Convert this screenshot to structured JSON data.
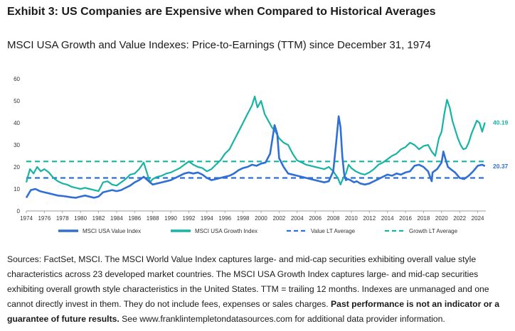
{
  "header": {
    "title": "Exhibit 3: US Companies are Expensive when Compared to Historical Averages"
  },
  "chart_data": {
    "type": "line",
    "title": "MSCI USA Growth and Value Indexes: Price-to-Earnings (TTM) since December 31, 1974",
    "xlabel": "",
    "ylabel": "",
    "xlim": [
      1974,
      2024.9
    ],
    "ylim": [
      0,
      60
    ],
    "y_ticks": [
      0,
      10,
      20,
      30,
      40,
      50,
      60
    ],
    "x_ticks": [
      1974,
      1976,
      1978,
      1980,
      1982,
      1984,
      1986,
      1988,
      1990,
      1992,
      1994,
      1996,
      1998,
      2000,
      2002,
      2004,
      2006,
      2008,
      2010,
      2012,
      2014,
      2016,
      2018,
      2020,
      2022,
      2024
    ],
    "grid": false,
    "legend_position": "bottom",
    "series": [
      {
        "name": "MSCI USA Value Index",
        "color": "#2f6fd6",
        "style": "solid",
        "end_label": "20.37",
        "x": [
          1974.0,
          1974.5,
          1975.0,
          1975.5,
          1976.0,
          1976.5,
          1977.0,
          1977.5,
          1978.0,
          1978.5,
          1979.0,
          1979.5,
          1980.0,
          1980.5,
          1981.0,
          1981.5,
          1982.0,
          1982.5,
          1983.0,
          1983.5,
          1984.0,
          1984.5,
          1985.0,
          1985.5,
          1986.0,
          1986.5,
          1987.0,
          1987.7,
          1988.0,
          1988.5,
          1989.0,
          1989.5,
          1990.0,
          1990.5,
          1991.0,
          1991.5,
          1992.0,
          1992.5,
          1993.0,
          1993.5,
          1994.0,
          1994.5,
          1995.0,
          1995.5,
          1996.0,
          1996.5,
          1997.0,
          1997.5,
          1998.0,
          1998.5,
          1999.0,
          1999.5,
          2000.0,
          2000.5,
          2001.0,
          2001.5,
          2001.8,
          2002.0,
          2002.5,
          2003.0,
          2003.5,
          2004.0,
          2004.5,
          2005.0,
          2005.5,
          2006.0,
          2006.5,
          2007.0,
          2007.5,
          2008.0,
          2008.3,
          2008.6,
          2008.8,
          2009.0,
          2009.2,
          2009.4,
          2009.6,
          2009.9,
          2010.3,
          2010.6,
          2011.0,
          2011.5,
          2012.0,
          2012.5,
          2013.0,
          2013.5,
          2014.0,
          2014.5,
          2015.0,
          2015.5,
          2016.0,
          2016.5,
          2017.0,
          2017.5,
          2018.0,
          2018.5,
          2018.9,
          2019.0,
          2019.5,
          2020.0,
          2020.2,
          2020.4,
          2020.7,
          2021.0,
          2021.5,
          2022.0,
          2022.5,
          2023.0,
          2023.5,
          2024.0,
          2024.5,
          2024.8
        ],
        "values": [
          6.0,
          9.5,
          10.0,
          9.0,
          8.5,
          8.0,
          7.5,
          7.0,
          6.8,
          6.5,
          6.2,
          6.0,
          6.5,
          7.0,
          6.5,
          6.0,
          6.5,
          8.5,
          9.0,
          9.5,
          9.0,
          9.5,
          10.5,
          11.5,
          13.0,
          14.0,
          15.5,
          13.0,
          12.0,
          12.5,
          13.0,
          13.5,
          14.0,
          15.0,
          16.0,
          17.0,
          17.5,
          17.0,
          17.5,
          16.5,
          15.0,
          14.0,
          14.5,
          15.0,
          15.5,
          16.0,
          17.0,
          18.5,
          19.5,
          20.0,
          21.0,
          20.5,
          21.5,
          22.0,
          26.0,
          39.0,
          35.0,
          24.0,
          20.0,
          17.0,
          16.5,
          16.0,
          15.5,
          15.0,
          14.5,
          14.0,
          13.5,
          13.0,
          13.5,
          18.0,
          30.0,
          43.0,
          38.0,
          25.0,
          17.0,
          14.0,
          14.5,
          14.0,
          13.0,
          13.5,
          12.5,
          12.0,
          12.5,
          13.5,
          14.5,
          15.5,
          16.5,
          16.0,
          17.0,
          16.5,
          17.5,
          18.0,
          20.5,
          21.0,
          20.0,
          18.0,
          13.5,
          17.5,
          19.0,
          22.0,
          27.0,
          24.0,
          20.0,
          19.0,
          17.5,
          15.0,
          14.5,
          16.0,
          18.0,
          20.5,
          21.0,
          20.4
        ]
      },
      {
        "name": "MSCI USA Growth Index",
        "color": "#17b3a4",
        "style": "solid",
        "end_label": "40.19",
        "x": [
          1974.0,
          1974.4,
          1974.8,
          1975.2,
          1975.6,
          1976.0,
          1976.5,
          1977.0,
          1977.5,
          1978.0,
          1978.5,
          1979.0,
          1979.5,
          1980.0,
          1980.5,
          1981.0,
          1981.5,
          1982.0,
          1982.5,
          1983.0,
          1983.5,
          1984.0,
          1984.5,
          1985.0,
          1985.5,
          1986.0,
          1986.5,
          1987.0,
          1987.7,
          1988.0,
          1988.5,
          1989.0,
          1989.5,
          1990.0,
          1990.5,
          1991.0,
          1991.5,
          1992.0,
          1992.5,
          1993.0,
          1993.5,
          1994.0,
          1994.5,
          1995.0,
          1995.5,
          1996.0,
          1996.5,
          1997.0,
          1997.5,
          1998.0,
          1998.5,
          1999.0,
          1999.3,
          1999.6,
          2000.0,
          2000.4,
          2000.8,
          2001.2,
          2001.6,
          2002.0,
          2002.5,
          2003.0,
          2003.5,
          2004.0,
          2004.5,
          2005.0,
          2005.5,
          2006.0,
          2006.5,
          2007.0,
          2007.5,
          2008.0,
          2008.5,
          2008.8,
          2009.1,
          2009.4,
          2009.7,
          2010.0,
          2010.5,
          2011.0,
          2011.5,
          2012.0,
          2012.5,
          2013.0,
          2013.5,
          2014.0,
          2014.5,
          2015.0,
          2015.5,
          2016.0,
          2016.5,
          2017.0,
          2017.5,
          2018.0,
          2018.5,
          2018.9,
          2019.3,
          2019.7,
          2020.0,
          2020.3,
          2020.6,
          2020.9,
          2021.2,
          2021.5,
          2021.8,
          2022.1,
          2022.4,
          2022.7,
          2023.0,
          2023.3,
          2023.6,
          2023.9,
          2024.2,
          2024.5,
          2024.8
        ],
        "values": [
          13.0,
          19.0,
          17.0,
          20.0,
          18.0,
          19.0,
          17.5,
          15.0,
          13.5,
          12.5,
          12.0,
          11.0,
          10.5,
          10.0,
          10.5,
          10.0,
          9.5,
          9.0,
          13.0,
          13.5,
          12.0,
          11.5,
          13.0,
          14.5,
          16.5,
          17.0,
          19.0,
          22.0,
          13.0,
          14.5,
          15.5,
          16.0,
          17.0,
          17.5,
          18.5,
          19.5,
          21.0,
          22.5,
          21.0,
          20.0,
          19.5,
          18.0,
          19.0,
          21.0,
          23.0,
          26.0,
          28.0,
          32.0,
          36.0,
          40.0,
          44.0,
          48.0,
          52.0,
          47.0,
          50.0,
          44.0,
          41.0,
          38.0,
          36.0,
          33.0,
          31.0,
          30.0,
          26.0,
          23.0,
          22.0,
          21.0,
          20.5,
          20.0,
          19.5,
          19.0,
          20.0,
          18.0,
          15.0,
          12.0,
          15.0,
          17.0,
          21.0,
          19.5,
          18.0,
          17.0,
          16.5,
          17.5,
          19.0,
          21.0,
          22.0,
          23.5,
          25.0,
          26.0,
          28.0,
          29.0,
          31.0,
          30.0,
          28.0,
          29.5,
          30.0,
          27.0,
          25.0,
          33.0,
          36.0,
          44.0,
          50.5,
          47.0,
          41.0,
          37.0,
          33.0,
          30.0,
          28.0,
          28.5,
          31.0,
          35.0,
          38.0,
          41.0,
          40.0,
          36.0,
          40.2
        ]
      },
      {
        "name": "Value LT Average",
        "color": "#2f6fd6",
        "style": "dashed",
        "x": [
          1974.0,
          2024.9
        ],
        "values": [
          15.0,
          15.0
        ]
      },
      {
        "name": "Growth LT Average",
        "color": "#17b3a4",
        "style": "dashed",
        "x": [
          1974.0,
          2024.9
        ],
        "values": [
          22.5,
          22.5
        ]
      }
    ]
  },
  "footnote": {
    "text": "Sources: FactSet, MSCI. The MSCI World Value Index captures large- and mid-cap securities exhibiting overall value style characteristics across 23 developed market countries. The MSCI USA Growth Index captures large- and mid-cap securities exhibiting overall growth style characteristics in the United States. TTM = trailing 12 months. Indexes are unmanaged and one cannot directly invest in them. They do not include fees, expenses or sales charges. ",
    "bold_text": "Past performance is not an indicator or a guarantee of future results.",
    "trailing_text": " See www.franklintempletondatasources.com for additional data provider information."
  }
}
